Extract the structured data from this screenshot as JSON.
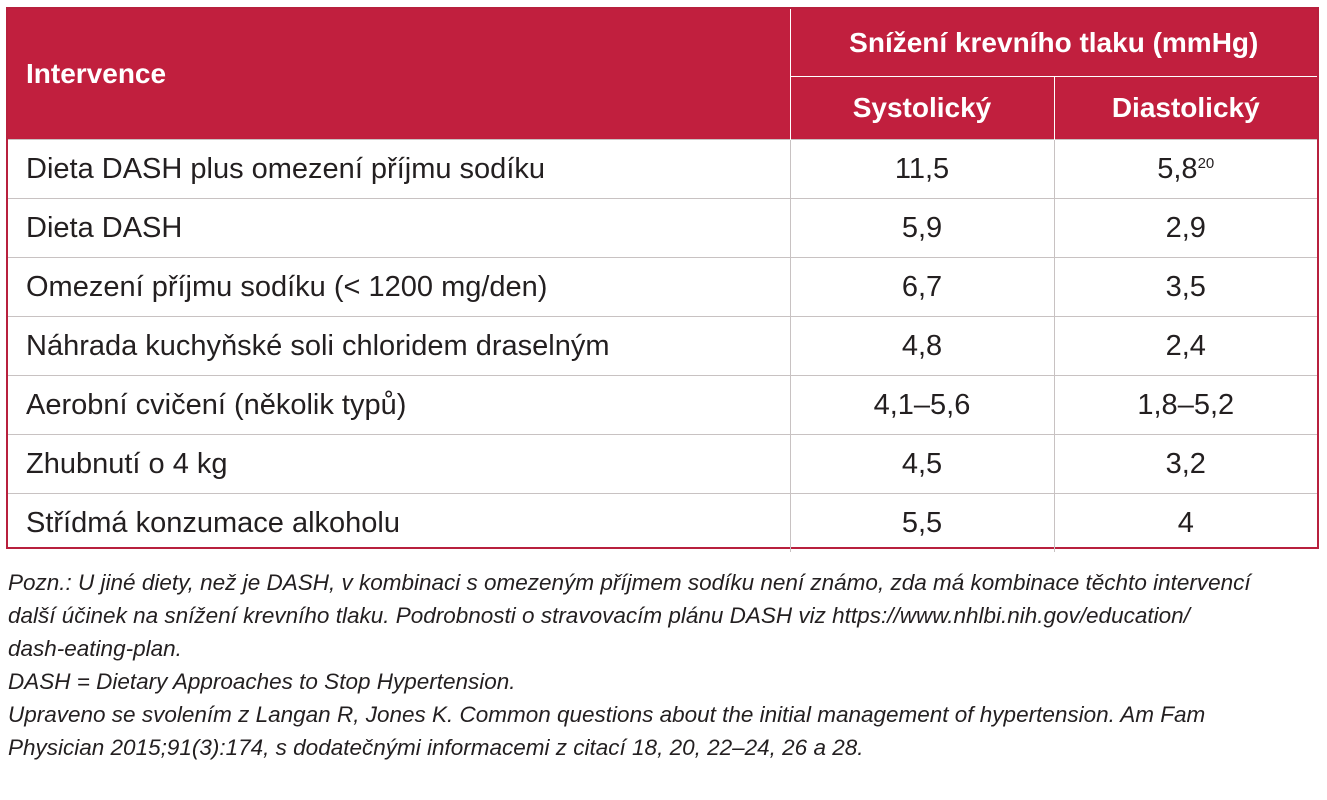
{
  "table": {
    "header": {
      "intervence": "Intervence",
      "group": "Snížení krevního tlaku (mmHg)",
      "systolic": "Systolický",
      "diastolic": "Diastolický"
    },
    "rows": [
      {
        "name": "Dieta DASH plus omezení příjmu sodíku",
        "systolic": "11,5",
        "diastolic": "5,8",
        "diastolic_ref": "20"
      },
      {
        "name": "Dieta DASH",
        "systolic": "5,9",
        "diastolic": "2,9"
      },
      {
        "name": "Omezení příjmu sodíku (< 1200 mg/den)",
        "systolic": "6,7",
        "diastolic": "3,5"
      },
      {
        "name": "Náhrada kuchyňské soli chloridem draselným",
        "systolic": "4,8",
        "diastolic": "2,4"
      },
      {
        "name": "Aerobní cvičení (několik typů)",
        "systolic": "4,1–5,6",
        "diastolic": "1,8–5,2"
      },
      {
        "name": "Zhubnutí o 4 kg",
        "systolic": "4,5",
        "diastolic": "3,2"
      },
      {
        "name": "Střídmá konzumace alkoholu",
        "systolic": "5,5",
        "diastolic": "4"
      }
    ]
  },
  "notes": {
    "note1_line1": "Pozn.: U jiné diety, než je DASH, v kombinaci s omezeným příjmem sodíku není známo, zda má kombinace těchto intervencí",
    "note1_line2": "další účinek na snížení krevního tlaku. Podrobnosti o stravovacím plánu DASH viz https://www.nhlbi.nih.gov/education/",
    "note1_line3": "dash-eating-plan.",
    "note2": "DASH = Dietary Approaches to Stop Hypertension.",
    "note3_line1": "Upraveno se svolením z Langan R, Jones K. Common questions about the initial management of hypertension. Am Fam",
    "note3_line2": "Physician 2015;91(3):174, s dodatečnými informacemi z citací 18, 20, 22–24, 26 a 28."
  },
  "colors": {
    "header_background": "#c11f3e",
    "border": "#b8203d"
  }
}
